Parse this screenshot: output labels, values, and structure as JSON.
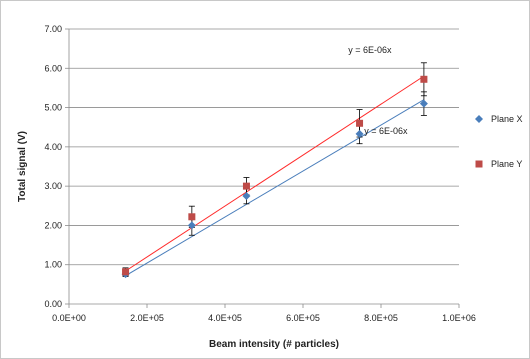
{
  "chart_data": {
    "type": "scatter",
    "title": "",
    "xlabel": "Beam intensity (# particles)",
    "ylabel": "Total signal (V)",
    "xlim": [
      0,
      1000000
    ],
    "ylim": [
      0,
      7
    ],
    "x_ticks": [
      "0.0E+00",
      "2.0E+05",
      "4.0E+05",
      "6.0E+05",
      "8.0E+05",
      "1.0E+06"
    ],
    "y_ticks": [
      "0.00",
      "1.00",
      "2.00",
      "3.00",
      "4.00",
      "5.00",
      "6.00",
      "7.00"
    ],
    "grid": "horizontal",
    "legend_position": "right",
    "series": [
      {
        "name": "Plane X",
        "color": "#4a7ebb",
        "marker": "diamond",
        "x": [
          145000,
          315000,
          455000,
          745000,
          910000
        ],
        "y": [
          0.76,
          2.0,
          2.75,
          4.33,
          5.1
        ],
        "err": [
          0.06,
          0.25,
          0.2,
          0.25,
          0.3
        ]
      },
      {
        "name": "Plane Y",
        "color": "#be4b48",
        "marker": "square",
        "x": [
          145000,
          315000,
          455000,
          745000,
          910000
        ],
        "y": [
          0.82,
          2.22,
          3.0,
          4.6,
          5.72
        ],
        "err": [
          0.1,
          0.27,
          0.22,
          0.35,
          0.42
        ]
      }
    ],
    "trendlines": [
      {
        "series": "Plane Y",
        "equation": "y = 6E-06x",
        "x": [
          145000,
          910000
        ],
        "y": [
          0.84,
          5.8
        ]
      },
      {
        "series": "Plane X",
        "equation": "y = 6E-06x",
        "x": [
          145000,
          910000
        ],
        "y": [
          0.72,
          5.2
        ]
      }
    ],
    "annotations": [
      {
        "text": "y = 6E-06x",
        "anchor_x": 910000,
        "anchor_y": 6.0,
        "series": "Plane Y"
      },
      {
        "text": "y = 6E-06x",
        "anchor_x": 910000,
        "anchor_y": 4.4,
        "series": "Plane X"
      }
    ]
  }
}
